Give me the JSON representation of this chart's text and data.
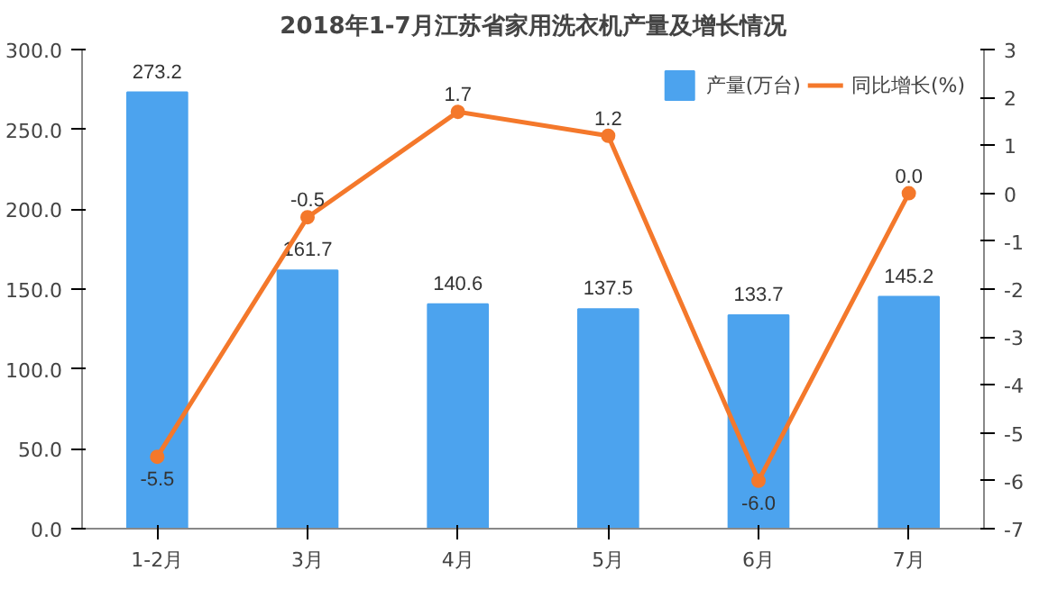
{
  "chart_data": {
    "type": "bar",
    "title": "2018年1-7月江苏省家用洗衣机产量及增长情况",
    "categories": [
      "1-2月",
      "3月",
      "4月",
      "5月",
      "6月",
      "7月"
    ],
    "series": [
      {
        "name": "产量(万台)",
        "color": "#4ca3ee",
        "values": [
          273.2,
          161.7,
          140.6,
          137.5,
          133.7,
          145.2
        ],
        "value_labels": [
          "273.2",
          "161.7",
          "140.6",
          "137.5",
          "133.7",
          "145.2"
        ]
      },
      {
        "name": "同比增长(%)",
        "type": "line",
        "axis": "y2",
        "color": "#f4782b",
        "marker": "circle",
        "values": [
          -5.5,
          -0.5,
          1.7,
          1.2,
          -6.0,
          0.0
        ],
        "value_labels": [
          "-5.5",
          "-0.5",
          "1.7",
          "1.2",
          "-6.0",
          "0.0"
        ]
      }
    ],
    "ylim": [
      0,
      300
    ],
    "yticks": [
      {
        "value": 0,
        "label": "0.0"
      },
      {
        "value": 50,
        "label": "50.0"
      },
      {
        "value": 100,
        "label": "100.0"
      },
      {
        "value": 150,
        "label": "150.0"
      },
      {
        "value": 200,
        "label": "200.0"
      },
      {
        "value": 250,
        "label": "250.0"
      },
      {
        "value": 300,
        "label": "300.0"
      }
    ],
    "y2lim": [
      -7,
      3
    ],
    "y2ticks": [
      -7,
      -6,
      -5,
      -4,
      -3,
      -2,
      -1,
      0,
      1,
      2,
      3
    ],
    "legend": "top right",
    "grid": false
  }
}
